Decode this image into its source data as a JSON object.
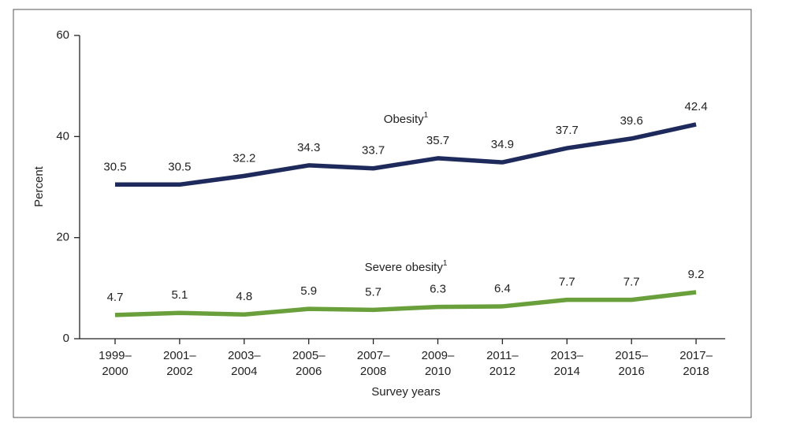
{
  "chart_data": {
    "type": "line",
    "x_label": "Survey years",
    "y_label": "Percent",
    "categories": [
      [
        "1999–",
        "2000"
      ],
      [
        "2001–",
        "2002"
      ],
      [
        "2003–",
        "2004"
      ],
      [
        "2005–",
        "2006"
      ],
      [
        "2007–",
        "2008"
      ],
      [
        "2009–",
        "2010"
      ],
      [
        "2011–",
        "2012"
      ],
      [
        "2013–",
        "2014"
      ],
      [
        "2015–",
        "2016"
      ],
      [
        "2017–",
        "2018"
      ]
    ],
    "series": [
      {
        "name": "Obesity",
        "footnote": "1",
        "color": "#1f2a5c",
        "values": [
          30.5,
          30.5,
          32.2,
          34.3,
          33.7,
          35.7,
          34.9,
          37.7,
          39.6,
          42.4
        ]
      },
      {
        "name": "Severe obesity",
        "footnote": "1",
        "color": "#6aa03c",
        "values": [
          4.7,
          5.1,
          4.8,
          5.9,
          5.7,
          6.3,
          6.4,
          7.7,
          7.7,
          9.2
        ]
      }
    ],
    "ylim": [
      0,
      60
    ],
    "yticks": [
      0,
      20,
      40,
      60
    ],
    "grid": false
  }
}
